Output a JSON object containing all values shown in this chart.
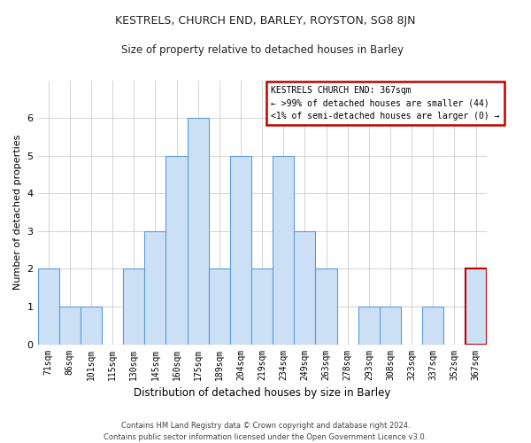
{
  "title": "KESTRELS, CHURCH END, BARLEY, ROYSTON, SG8 8JN",
  "subtitle": "Size of property relative to detached houses in Barley",
  "xlabel": "Distribution of detached houses by size in Barley",
  "ylabel": "Number of detached properties",
  "bar_color": "#cce0f5",
  "bar_edge_color": "#5b9bd5",
  "categories": [
    "71sqm",
    "86sqm",
    "101sqm",
    "115sqm",
    "130sqm",
    "145sqm",
    "160sqm",
    "175sqm",
    "189sqm",
    "204sqm",
    "219sqm",
    "234sqm",
    "249sqm",
    "263sqm",
    "278sqm",
    "293sqm",
    "308sqm",
    "323sqm",
    "337sqm",
    "352sqm",
    "367sqm"
  ],
  "values": [
    2,
    1,
    1,
    0,
    2,
    3,
    5,
    6,
    2,
    5,
    2,
    5,
    3,
    2,
    0,
    1,
    1,
    0,
    1,
    0,
    2
  ],
  "highlight_index": 20,
  "highlight_edge_color": "#c00000",
  "ylim": [
    0,
    7
  ],
  "yticks": [
    0,
    1,
    2,
    3,
    4,
    5,
    6
  ],
  "legend_title": "KESTRELS CHURCH END: 367sqm",
  "legend_line1": "← >99% of detached houses are smaller (44)",
  "legend_line2": "<1% of semi-detached houses are larger (0) →",
  "legend_box_color": "#c00000",
  "footnote_line1": "Contains HM Land Registry data © Crown copyright and database right 2024.",
  "footnote_line2": "Contains public sector information licensed under the Open Government Licence v3.0.",
  "grid_color": "#cccccc",
  "background_color": "#ffffff",
  "title_fontsize": 9,
  "subtitle_fontsize": 8.5,
  "ylabel_fontsize": 8,
  "xlabel_fontsize": 8.5,
  "tick_fontsize": 7,
  "legend_fontsize": 7,
  "footnote_fontsize": 6
}
